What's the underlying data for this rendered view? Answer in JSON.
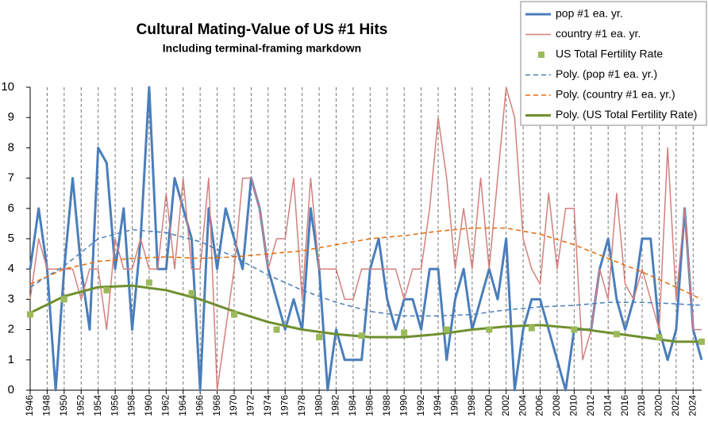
{
  "chart_data": {
    "type": "line",
    "title": "Cultural Mating-Value of US #1 Hits",
    "subtitle": "Including terminal-framing markdown",
    "xlim": [
      1946,
      2025
    ],
    "xticks": [
      1946,
      1948,
      1950,
      1952,
      1954,
      1956,
      1958,
      1960,
      1962,
      1964,
      1966,
      1968,
      1970,
      1972,
      1974,
      1976,
      1978,
      1980,
      1982,
      1984,
      1986,
      1988,
      1990,
      1992,
      1994,
      1996,
      1998,
      2000,
      2002,
      2004,
      2006,
      2008,
      2010,
      2012,
      2014,
      2016,
      2018,
      2020,
      2022,
      2024
    ],
    "ylim": [
      0,
      10
    ],
    "yticks": [
      0,
      1,
      2,
      3,
      4,
      5,
      6,
      7,
      8,
      9,
      10
    ],
    "grid": true,
    "legend": "top-right",
    "series": [
      {
        "name": "pop  #1 ea. yr.",
        "color": "#4a7ebb",
        "kind": "line",
        "style": "solid",
        "width": 3,
        "x": [
          1946,
          1947,
          1948,
          1949,
          1950,
          1951,
          1952,
          1953,
          1954,
          1955,
          1956,
          1957,
          1958,
          1959,
          1960,
          1961,
          1962,
          1963,
          1964,
          1965,
          1966,
          1967,
          1968,
          1969,
          1970,
          1971,
          1972,
          1973,
          1974,
          1975,
          1976,
          1977,
          1978,
          1979,
          1980,
          1981,
          1982,
          1983,
          1984,
          1985,
          1986,
          1987,
          1988,
          1989,
          1990,
          1991,
          1992,
          1993,
          1994,
          1995,
          1996,
          1997,
          1998,
          1999,
          2000,
          2001,
          2002,
          2003,
          2004,
          2005,
          2006,
          2007,
          2008,
          2009,
          2010,
          2011,
          2012,
          2013,
          2014,
          2015,
          2016,
          2017,
          2018,
          2019,
          2020,
          2021,
          2022,
          2023,
          2024,
          2025
        ],
        "values": [
          4,
          6,
          4,
          0,
          4,
          7,
          4,
          2,
          8,
          7.5,
          4,
          6,
          2,
          5,
          10,
          4,
          4,
          7,
          6,
          5,
          0,
          6,
          4,
          6,
          5,
          4,
          7,
          6,
          4,
          3,
          2,
          3,
          2,
          6,
          4,
          0,
          2,
          1,
          1,
          1,
          4,
          5,
          3,
          2,
          3,
          3,
          2,
          4,
          4,
          1,
          3,
          4,
          2,
          3,
          4,
          3,
          5,
          0,
          2,
          3,
          3,
          2,
          1,
          0,
          2,
          2,
          2,
          4,
          5,
          3,
          2,
          3,
          5,
          5,
          2,
          1,
          2,
          6,
          2,
          1
        ]
      },
      {
        "name": "country  #1 ea. yr.",
        "color": "#d47f7d",
        "kind": "line",
        "style": "solid",
        "width": 1.5,
        "x": [
          1946,
          1947,
          1948,
          1949,
          1950,
          1951,
          1952,
          1953,
          1954,
          1955,
          1956,
          1957,
          1958,
          1959,
          1960,
          1961,
          1962,
          1963,
          1964,
          1965,
          1966,
          1967,
          1968,
          1969,
          1970,
          1971,
          1972,
          1973,
          1974,
          1975,
          1976,
          1977,
          1978,
          1979,
          1980,
          1981,
          1982,
          1983,
          1984,
          1985,
          1986,
          1987,
          1988,
          1989,
          1990,
          1991,
          1992,
          1993,
          1994,
          1995,
          1996,
          1997,
          1998,
          1999,
          2000,
          2001,
          2002,
          2003,
          2004,
          2005,
          2006,
          2007,
          2008,
          2009,
          2010,
          2011,
          2012,
          2013,
          2014,
          2015,
          2016,
          2017,
          2018,
          2019,
          2020,
          2021,
          2022,
          2023,
          2024,
          2025
        ],
        "values": [
          3,
          5,
          4,
          4,
          4,
          4,
          3,
          4,
          4,
          2,
          5,
          4,
          4,
          5,
          4,
          4,
          6.5,
          4,
          7,
          4,
          4,
          7,
          0,
          2,
          4,
          7,
          7,
          6,
          4,
          5,
          5,
          7,
          3,
          7,
          4,
          4,
          4,
          3,
          3,
          4,
          4,
          4,
          4,
          4,
          3,
          4,
          4,
          6,
          9,
          7,
          4,
          6,
          4,
          7,
          4,
          7,
          10,
          9,
          5,
          4,
          3.5,
          6.5,
          4,
          6,
          6,
          1,
          2,
          4,
          3,
          6.5,
          3.5,
          3,
          4,
          3,
          2,
          8,
          3,
          6,
          2,
          2
        ]
      },
      {
        "name": "US Total Fertility Rate",
        "color": "#9bbb59",
        "kind": "scatter",
        "x": [
          1946,
          1950,
          1955,
          1960,
          1965,
          1970,
          1975,
          1980,
          1985,
          1990,
          1995,
          2000,
          2005,
          2010,
          2015,
          2020,
          2025
        ],
        "values": [
          2.5,
          3.0,
          3.3,
          3.55,
          3.2,
          2.5,
          2.0,
          1.75,
          1.8,
          1.9,
          2.0,
          2.0,
          2.05,
          2.0,
          1.85,
          1.75,
          1.6
        ]
      },
      {
        "name": "Poly. (pop  #1 ea. yr.)",
        "color": "#4a7ebb",
        "kind": "line",
        "style": "dashed",
        "width": 1.5,
        "x": [
          1946,
          1950,
          1954,
          1958,
          1962,
          1966,
          1970,
          1974,
          1978,
          1982,
          1986,
          1990,
          1994,
          1998,
          2002,
          2006,
          2010,
          2014,
          2018,
          2022,
          2025
        ],
        "values": [
          3.4,
          4.1,
          5.0,
          5.3,
          5.2,
          4.9,
          4.4,
          3.8,
          3.3,
          2.9,
          2.6,
          2.45,
          2.45,
          2.5,
          2.65,
          2.75,
          2.8,
          2.9,
          2.9,
          2.85,
          2.8
        ]
      },
      {
        "name": "Poly. (country  #1 ea. yr.)",
        "color": "#e46c0a",
        "kind": "line",
        "style": "dashed",
        "width": 1.5,
        "x": [
          1946,
          1950,
          1954,
          1958,
          1962,
          1966,
          1970,
          1974,
          1978,
          1982,
          1986,
          1990,
          1994,
          1998,
          2002,
          2006,
          2010,
          2014,
          2018,
          2022,
          2025
        ],
        "values": [
          3.5,
          4.0,
          4.25,
          4.35,
          4.4,
          4.35,
          4.4,
          4.5,
          4.6,
          4.8,
          5.0,
          5.1,
          5.25,
          5.35,
          5.35,
          5.15,
          4.8,
          4.35,
          3.9,
          3.4,
          3.0
        ]
      },
      {
        "name": "Poly. (US Total Fertility Rate)",
        "color": "#6f8f2e",
        "kind": "line",
        "style": "solid",
        "width": 3,
        "x": [
          1946,
          1950,
          1954,
          1958,
          1962,
          1966,
          1970,
          1974,
          1978,
          1982,
          1986,
          1990,
          1994,
          1998,
          2002,
          2006,
          2010,
          2014,
          2018,
          2022,
          2025
        ],
        "values": [
          2.55,
          3.1,
          3.4,
          3.45,
          3.3,
          3.0,
          2.6,
          2.25,
          2.0,
          1.85,
          1.75,
          1.75,
          1.85,
          2.0,
          2.1,
          2.15,
          2.05,
          1.9,
          1.75,
          1.6,
          1.6
        ]
      }
    ]
  }
}
